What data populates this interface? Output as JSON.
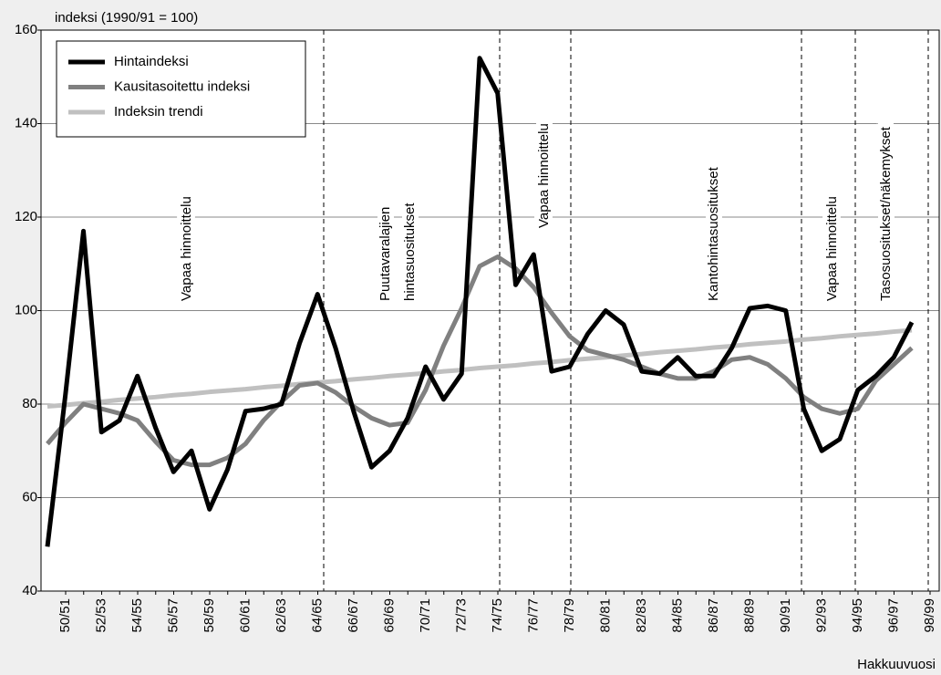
{
  "chart_data": {
    "type": "line",
    "y_label": "indeksi (1990/91 = 100)",
    "x_label": "Hakkuuvuosi",
    "categories": [
      "50/51",
      null,
      "52/53",
      null,
      "54/55",
      null,
      "56/57",
      null,
      "58/59",
      null,
      "60/61",
      null,
      "62/63",
      null,
      "64/65",
      null,
      "66/67",
      null,
      "68/69",
      null,
      "70/71",
      null,
      "72/73",
      null,
      "74/75",
      null,
      "76/77",
      null,
      "78/79",
      null,
      "80/81",
      null,
      "82/83",
      null,
      "84/85",
      null,
      "86/87",
      null,
      "88/89",
      null,
      "90/91",
      null,
      "92/93",
      null,
      "94/95",
      null,
      "96/97",
      null,
      "98/99"
    ],
    "series": [
      {
        "name": "Hintaindeksi",
        "color": "#000000",
        "values": [
          49.5,
          82,
          117,
          74,
          76.5,
          86,
          75,
          65.5,
          70,
          57.5,
          66,
          78.5,
          79,
          80,
          93,
          103.5,
          92,
          78.5,
          66.5,
          70,
          77,
          88,
          81,
          86.5,
          154,
          146.5,
          105.5,
          112,
          87,
          88,
          95,
          100,
          97,
          87,
          86.5,
          90,
          86,
          86,
          92,
          100.5,
          101,
          100,
          79,
          70,
          72.5,
          83,
          86,
          90,
          97.5
        ]
      },
      {
        "name": "Kausitasoitettu indeksi",
        "color": "#808080",
        "values": [
          71.5,
          76,
          80,
          79,
          78,
          76.5,
          72,
          68,
          67,
          67,
          68.5,
          71.5,
          76.5,
          80.5,
          84,
          84.5,
          82.5,
          79.5,
          77,
          75.5,
          76,
          83,
          92.5,
          100.5,
          109.5,
          111.5,
          109,
          105,
          99.5,
          94.5,
          91.5,
          90.5,
          89.5,
          88,
          86.5,
          85.5,
          85.5,
          87,
          89.5,
          90,
          88.5,
          85.5,
          81.5,
          79,
          78,
          79,
          85,
          88.5,
          92
        ]
      },
      {
        "name": "Indeksin trendi",
        "color": "#c0c0c0",
        "values": [
          79.5,
          79.8,
          80.2,
          80.5,
          80.9,
          81.2,
          81.5,
          81.9,
          82.2,
          82.6,
          82.9,
          83.2,
          83.6,
          83.9,
          84.3,
          84.6,
          84.9,
          85.3,
          85.6,
          86.0,
          86.3,
          86.6,
          87.0,
          87.3,
          87.7,
          88.0,
          88.3,
          88.7,
          89.0,
          89.4,
          89.7,
          90.0,
          90.4,
          90.7,
          91.1,
          91.4,
          91.7,
          92.1,
          92.4,
          92.8,
          93.1,
          93.4,
          93.8,
          94.1,
          94.5,
          94.8,
          95.1,
          95.5,
          95.8
        ]
      }
    ],
    "annotations": [
      [
        "Vapaa hinnoittelu"
      ],
      [
        "Puutavaralajien",
        "hintasuositukset"
      ],
      [
        "Vapaa hinnoittelu"
      ],
      [
        "Kantohintasuositukset"
      ],
      [
        "Vapaa hinnoittelu"
      ],
      [
        "Tasosuositukset/näkemykset"
      ]
    ],
    "ylim": [
      40,
      160
    ],
    "yticks": [
      40,
      60,
      80,
      100,
      120,
      140,
      160
    ],
    "grid": true,
    "legend": "upper left"
  }
}
